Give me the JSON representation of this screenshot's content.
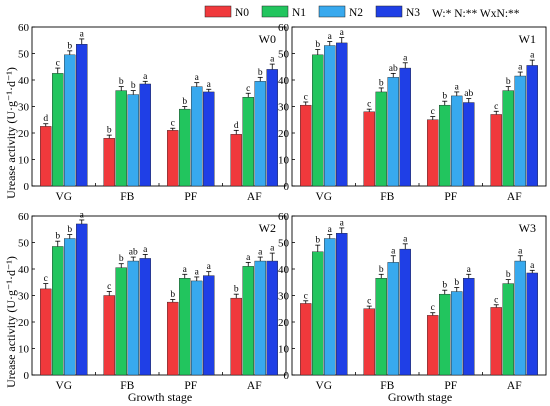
{
  "colors": {
    "N0": "#f0393c",
    "N1": "#22c55e",
    "N2": "#38a9ee",
    "N3": "#1f3fe6"
  },
  "legend": {
    "items": [
      "N0",
      "N1",
      "N2",
      "N3"
    ],
    "stats_label": "W:*    N:**    WxN:**"
  },
  "axes": {
    "ylabel": "Urease activity (U·g⁻¹·d⁻¹)",
    "xlabel": "Growth stage"
  },
  "chart_data": [
    {
      "type": "bar",
      "title": "W0",
      "categories": [
        "VG",
        "FB",
        "PF",
        "AF"
      ],
      "ylim": [
        0,
        60
      ],
      "yticks": [
        0,
        10,
        20,
        30,
        40,
        50,
        60
      ],
      "series": [
        {
          "name": "N0",
          "values": [
            22.5,
            18.0,
            21.0,
            19.5
          ],
          "errors": [
            1.0,
            1.2,
            0.8,
            1.5
          ],
          "letters": [
            "d",
            "b",
            "c",
            "d"
          ]
        },
        {
          "name": "N1",
          "values": [
            42.5,
            36.0,
            29.0,
            33.5
          ],
          "errors": [
            2.0,
            1.5,
            1.0,
            1.5
          ],
          "letters": [
            "c",
            "b",
            "b",
            "c"
          ]
        },
        {
          "name": "N2",
          "values": [
            49.5,
            34.5,
            37.5,
            39.5
          ],
          "errors": [
            1.5,
            1.5,
            1.5,
            1.5
          ],
          "letters": [
            "b",
            "b",
            "a",
            "b"
          ]
        },
        {
          "name": "N3",
          "values": [
            53.5,
            38.5,
            35.5,
            44.0
          ],
          "errors": [
            2.0,
            1.0,
            1.0,
            2.0
          ],
          "letters": [
            "a",
            "a",
            "a",
            "a"
          ]
        }
      ]
    },
    {
      "type": "bar",
      "title": "W1",
      "categories": [
        "VG",
        "FB",
        "PF",
        "AF"
      ],
      "ylim": [
        0,
        60
      ],
      "yticks": [
        0,
        10,
        20,
        30,
        40,
        50,
        60
      ],
      "series": [
        {
          "name": "N0",
          "values": [
            30.5,
            28.0,
            25.0,
            27.0
          ],
          "errors": [
            1.2,
            1.0,
            1.2,
            1.2
          ],
          "letters": [
            "c",
            "c",
            "c",
            "c"
          ]
        },
        {
          "name": "N1",
          "values": [
            49.5,
            35.5,
            30.5,
            36.0
          ],
          "errors": [
            2.0,
            1.5,
            1.5,
            1.5
          ],
          "letters": [
            "b",
            "b",
            "b",
            "b"
          ]
        },
        {
          "name": "N2",
          "values": [
            53.0,
            41.0,
            34.0,
            41.5
          ],
          "errors": [
            1.5,
            1.5,
            1.5,
            1.5
          ],
          "letters": [
            "a",
            "ab",
            "a",
            "a"
          ]
        },
        {
          "name": "N3",
          "values": [
            54.0,
            44.5,
            31.5,
            45.5
          ],
          "errors": [
            2.0,
            2.0,
            1.5,
            2.0
          ],
          "letters": [
            "a",
            "a",
            "ab",
            "a"
          ]
        }
      ]
    },
    {
      "type": "bar",
      "title": "W2",
      "categories": [
        "VG",
        "FB",
        "PF",
        "AF"
      ],
      "ylim": [
        0,
        60
      ],
      "yticks": [
        0,
        10,
        20,
        30,
        40,
        50,
        60
      ],
      "series": [
        {
          "name": "N0",
          "values": [
            32.5,
            30.0,
            27.5,
            29.0
          ],
          "errors": [
            2.0,
            1.5,
            1.0,
            1.5
          ],
          "letters": [
            "c",
            "c",
            "b",
            "b"
          ]
        },
        {
          "name": "N1",
          "values": [
            48.5,
            40.5,
            36.5,
            41.0
          ],
          "errors": [
            2.0,
            1.5,
            1.5,
            1.5
          ],
          "letters": [
            "b",
            "b",
            "a",
            "a"
          ]
        },
        {
          "name": "N2",
          "values": [
            51.5,
            43.0,
            35.5,
            43.0
          ],
          "errors": [
            1.5,
            1.5,
            1.5,
            1.5
          ],
          "letters": [
            "b",
            "ab",
            "a",
            "a"
          ]
        },
        {
          "name": "N3",
          "values": [
            57.0,
            44.0,
            37.5,
            43.0
          ],
          "errors": [
            1.5,
            1.5,
            1.5,
            3.0
          ],
          "letters": [
            "a",
            "a",
            "a",
            "a"
          ]
        }
      ]
    },
    {
      "type": "bar",
      "title": "W3",
      "categories": [
        "VG",
        "FB",
        "PF",
        "AF"
      ],
      "ylim": [
        0,
        60
      ],
      "yticks": [
        0,
        10,
        20,
        30,
        40,
        50,
        60
      ],
      "series": [
        {
          "name": "N0",
          "values": [
            27.0,
            25.0,
            22.5,
            25.5
          ],
          "errors": [
            1.0,
            1.0,
            1.0,
            1.0
          ],
          "letters": [
            "c",
            "c",
            "c",
            "c"
          ]
        },
        {
          "name": "N1",
          "values": [
            46.5,
            36.5,
            30.5,
            34.5
          ],
          "errors": [
            2.5,
            1.5,
            1.5,
            1.5
          ],
          "letters": [
            "b",
            "b",
            "b",
            "b"
          ]
        },
        {
          "name": "N2",
          "values": [
            51.5,
            42.5,
            31.5,
            43.0
          ],
          "errors": [
            1.5,
            2.5,
            1.5,
            2.0
          ],
          "letters": [
            "a",
            "a",
            "b",
            "a"
          ]
        },
        {
          "name": "N3",
          "values": [
            53.5,
            47.5,
            36.5,
            38.5
          ],
          "errors": [
            2.0,
            2.0,
            1.5,
            1.0
          ],
          "letters": [
            "a",
            "a",
            "a",
            "a"
          ]
        }
      ]
    }
  ]
}
